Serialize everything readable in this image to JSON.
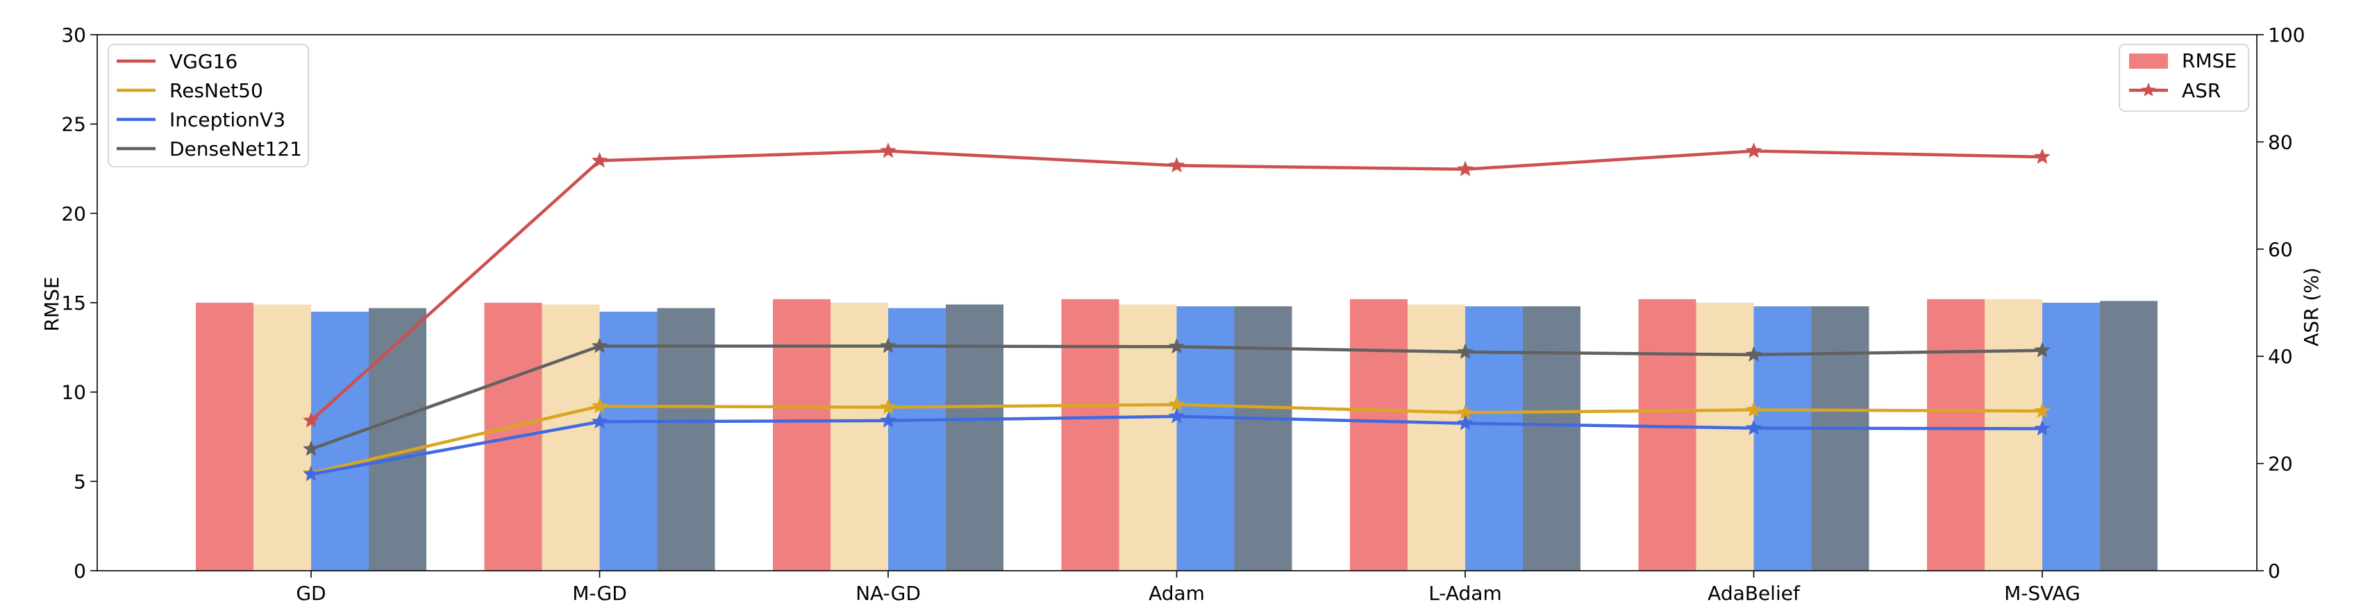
{
  "chart_data": {
    "type": "bar",
    "categories": [
      "GD",
      "M-GD",
      "NA-GD",
      "Adam",
      "L-Adam",
      "AdaBelief",
      "M-SVAG"
    ],
    "bar_series": [
      {
        "model": "VGG16",
        "color": "#f08080",
        "values": [
          15.0,
          15.0,
          15.2,
          15.2,
          15.2,
          15.2,
          15.2
        ]
      },
      {
        "model": "ResNet50",
        "color": "#f5deb3",
        "values": [
          14.9,
          14.9,
          15.0,
          14.9,
          14.9,
          15.0,
          15.2
        ]
      },
      {
        "model": "InceptionV3",
        "color": "#6495ed",
        "values": [
          14.5,
          14.5,
          14.7,
          14.8,
          14.8,
          14.8,
          15.0
        ]
      },
      {
        "model": "DenseNet121",
        "color": "#708090",
        "values": [
          14.7,
          14.7,
          14.9,
          14.8,
          14.8,
          14.8,
          15.1
        ]
      }
    ],
    "line_series": [
      {
        "name": "VGG16",
        "color": "#cd4f4f",
        "values": [
          28.0,
          76.5,
          78.3,
          75.6,
          74.9,
          78.3,
          77.2
        ]
      },
      {
        "name": "ResNet50",
        "color": "#daa520",
        "values": [
          18.2,
          30.7,
          30.5,
          31.0,
          29.5,
          30.0,
          29.8
        ]
      },
      {
        "name": "InceptionV3",
        "color": "#4169e1",
        "values": [
          18.0,
          27.8,
          28.0,
          28.8,
          27.5,
          26.6,
          26.5
        ]
      },
      {
        "name": "DenseNet121",
        "color": "#616161",
        "values": [
          22.7,
          41.9,
          41.9,
          41.8,
          40.8,
          40.3,
          41.1
        ]
      }
    ],
    "y_left": {
      "label": "RMSE",
      "lim": [
        0,
        30
      ],
      "ticks": [
        "0",
        "5",
        "10",
        "15",
        "20",
        "25",
        "30"
      ]
    },
    "y_right": {
      "label": "ASR (%)",
      "lim": [
        0,
        100
      ],
      "ticks": [
        "0",
        "20",
        "40",
        "60",
        "80",
        "100"
      ]
    },
    "legend_models": [
      "VGG16",
      "ResNet50",
      "InceptionV3",
      "DenseNet121"
    ],
    "legend_metrics": {
      "bar_label": "RMSE",
      "line_label": "ASR",
      "bar_color": "#f08080",
      "line_color": "#cd4f4f"
    },
    "grid": false
  }
}
